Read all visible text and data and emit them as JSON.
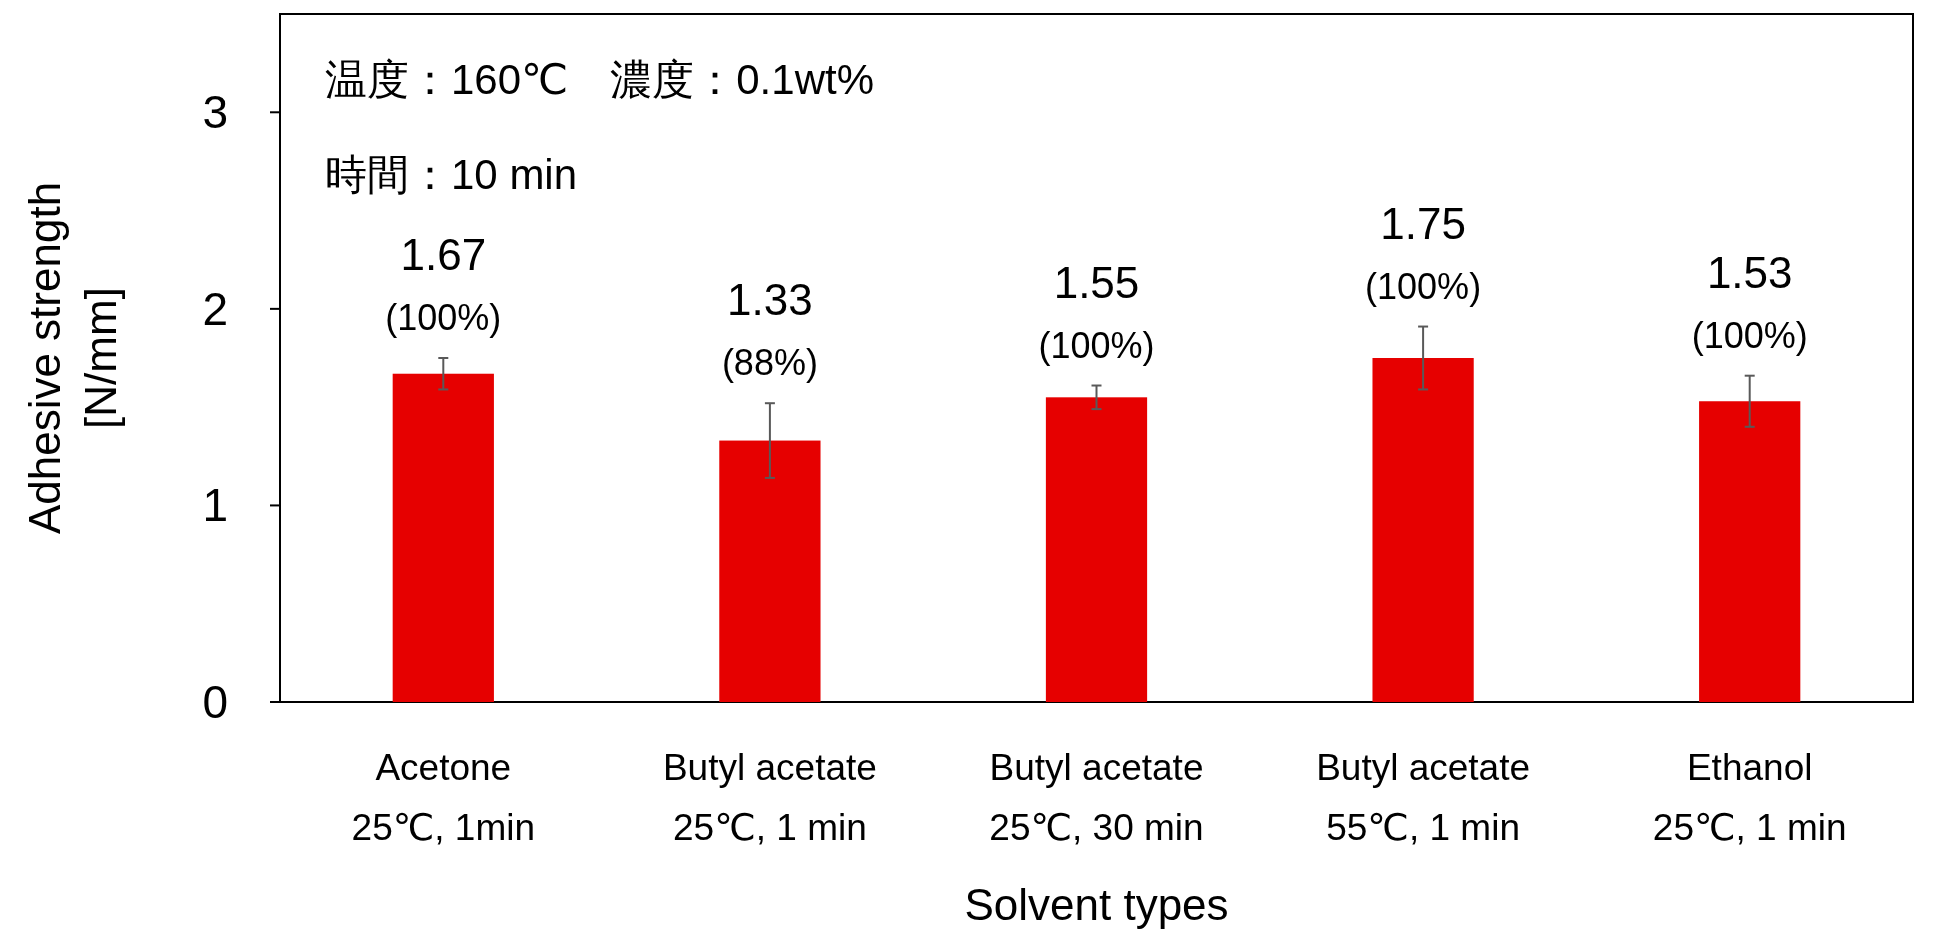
{
  "chart_data": {
    "type": "bar",
    "xlabel": "Solvent types",
    "ylabel": "Adhesive strength\n[N/mm]",
    "categories": [
      "Acetone\n25℃, 1min",
      "Butyl acetate\n25℃, 1 min",
      "Butyl acetate\n25℃, 30 min",
      "Butyl acetate\n55℃, 1 min",
      "Ethanol\n25℃, 1 min"
    ],
    "values": [
      1.67,
      1.33,
      1.55,
      1.75,
      1.53
    ],
    "errors": [
      0.08,
      0.19,
      0.06,
      0.16,
      0.13
    ],
    "value_labels": [
      "1.67\n(100%)",
      "1.33\n(88%)",
      "1.55\n(100%)",
      "1.75\n(100%)",
      "1.53\n(100%)"
    ],
    "color": "#e60000",
    "ylim": [
      0,
      3.5
    ],
    "yticks": [
      0,
      1,
      2,
      3
    ],
    "grid": false,
    "annotations": [
      "温度：160℃　濃度：0.1wt%",
      "時間：10 min"
    ]
  }
}
